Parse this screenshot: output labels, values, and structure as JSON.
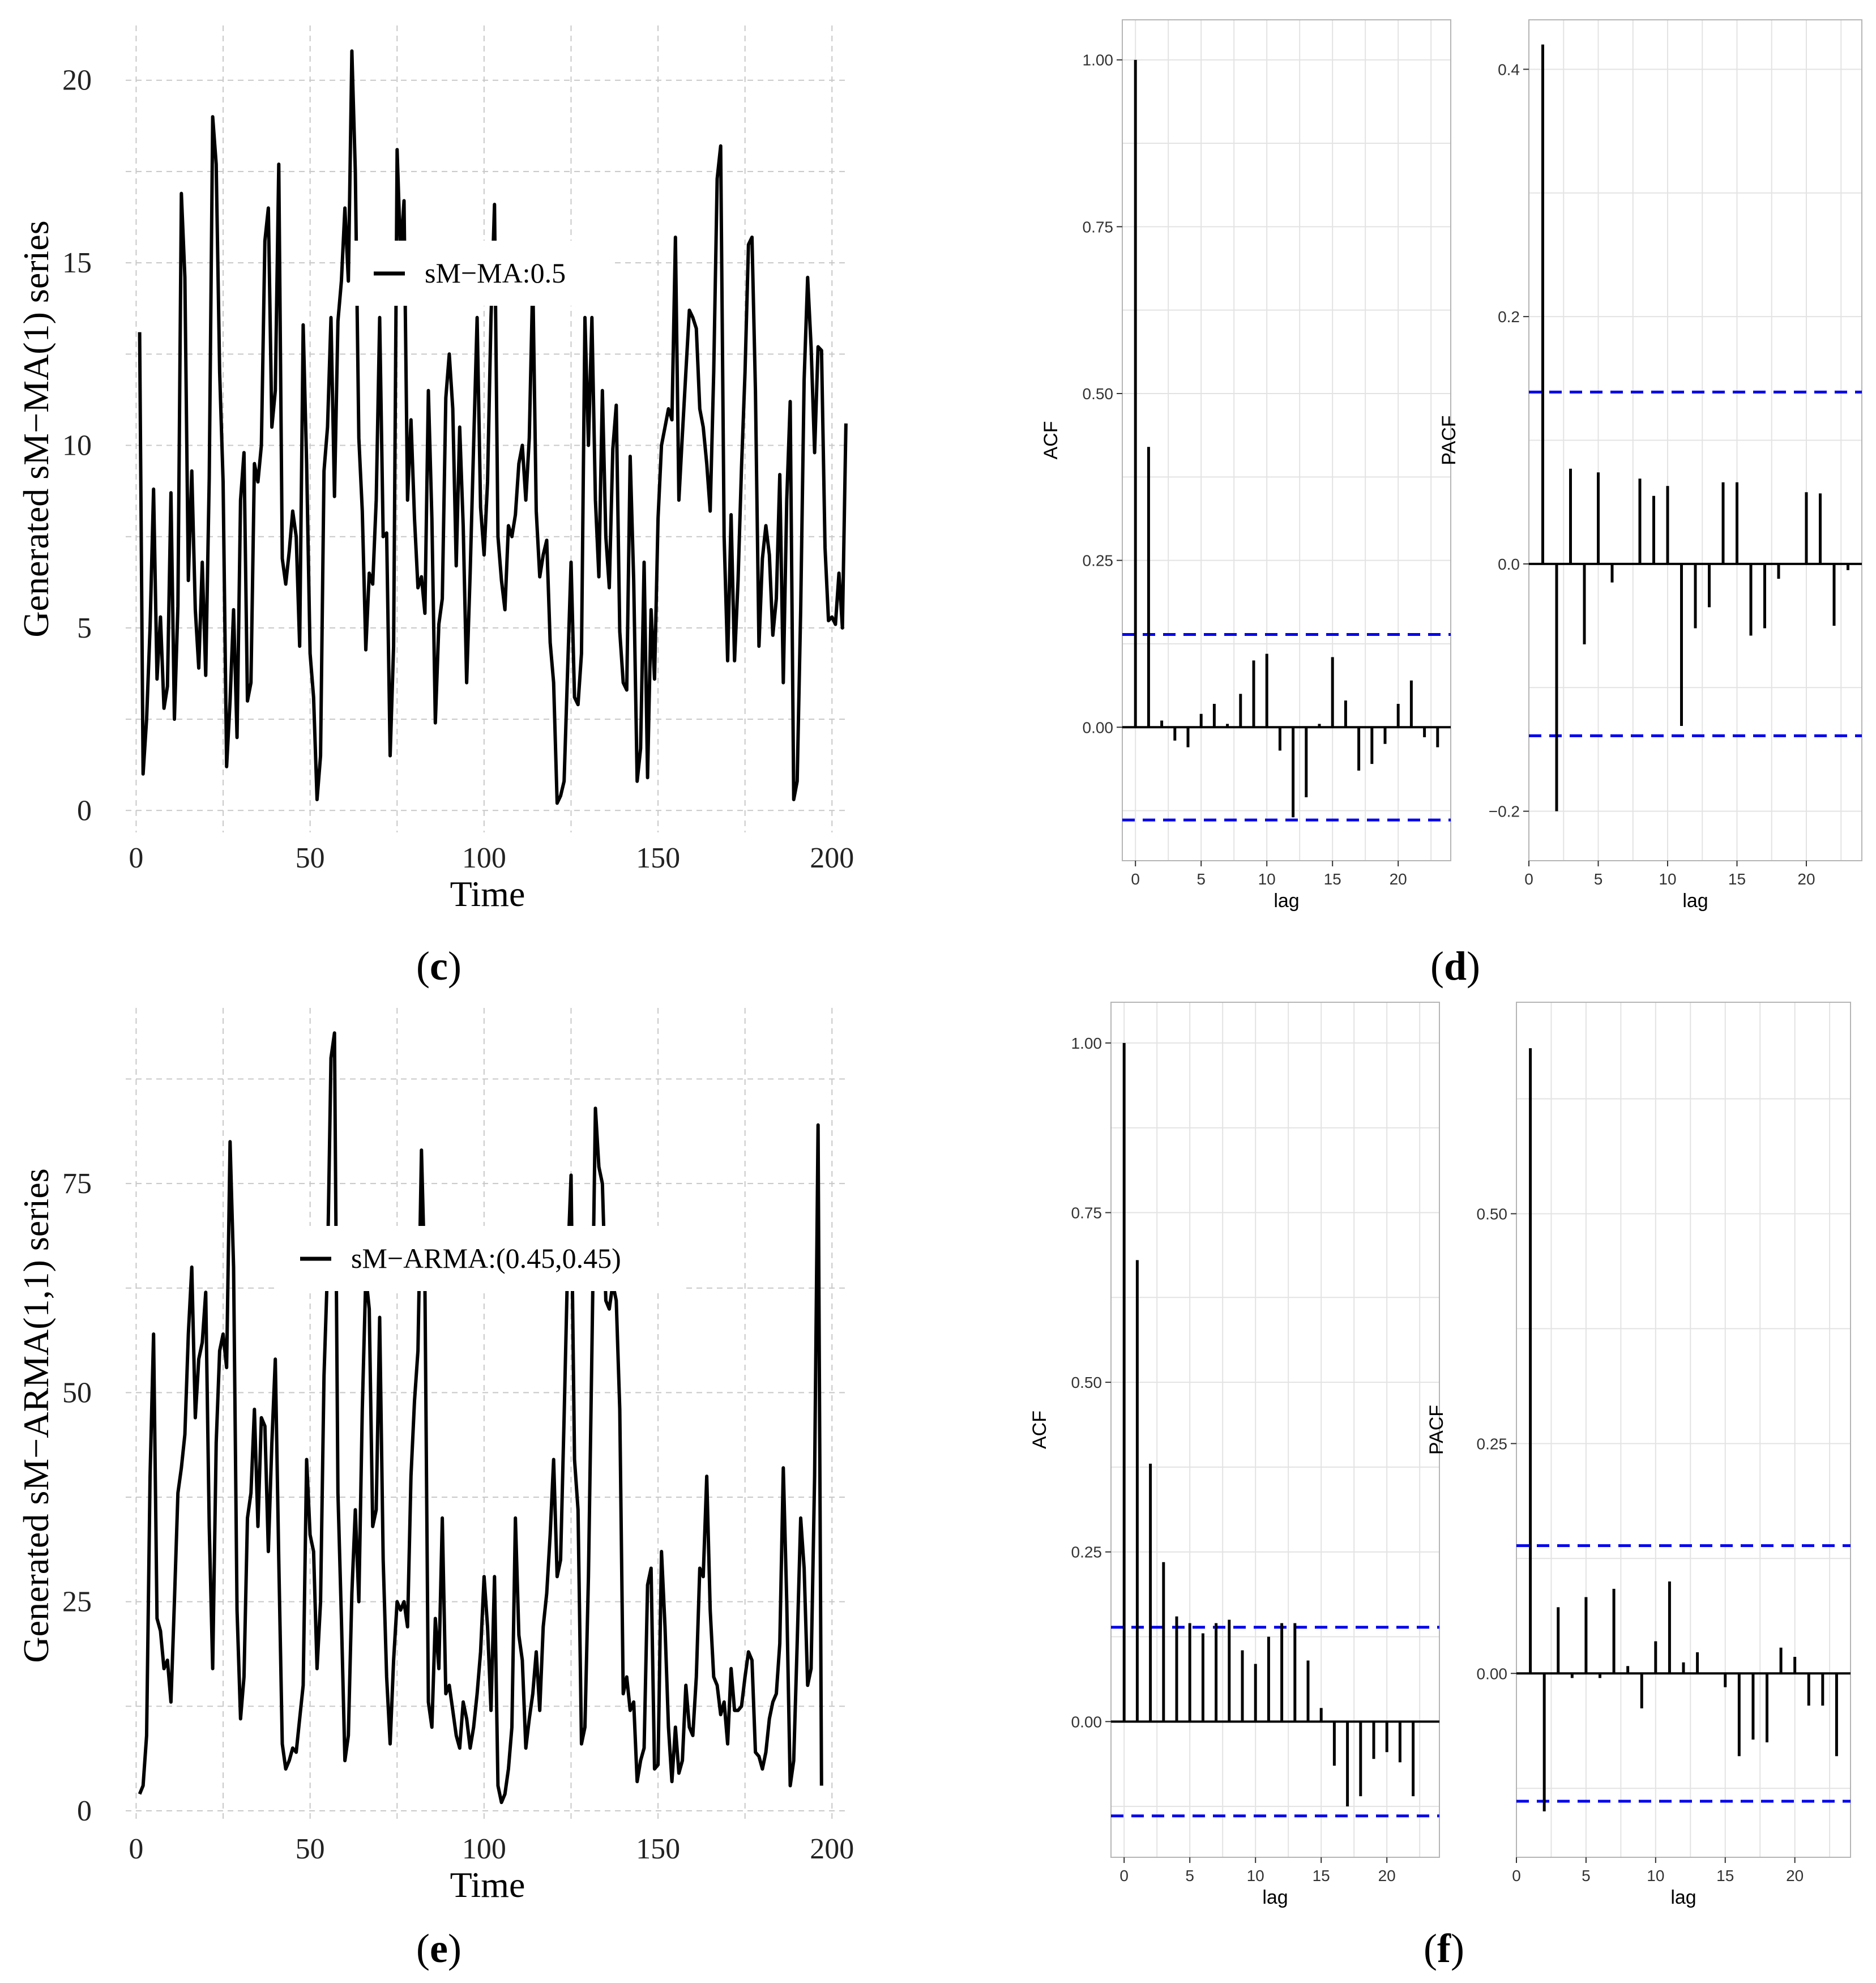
{
  "chart_data": [
    {
      "id": "c",
      "type": "line",
      "panel_label": "c",
      "xlabel": "Time",
      "ylabel": "Generated sM−MA(1) series",
      "xlim": [
        -3,
        205
      ],
      "ylim": [
        -0.6,
        21.5
      ],
      "xticks": [
        0,
        50,
        100,
        150,
        200
      ],
      "yticks": [
        0,
        5,
        10,
        15,
        20
      ],
      "legend": "sM−MA:0.5",
      "series": [
        {
          "name": "sM−MA:0.5",
          "x_start": 1,
          "values": [
            13.1,
            1.0,
            2.5,
            5.0,
            8.8,
            3.6,
            5.3,
            2.8,
            3.4,
            8.7,
            2.5,
            5.6,
            16.9,
            14.6,
            6.3,
            9.3,
            5.5,
            3.9,
            6.8,
            3.7,
            9.1,
            19.0,
            17.7,
            12.0,
            9.0,
            1.2,
            3.0,
            5.5,
            2.0,
            8.5,
            9.8,
            3.0,
            3.5,
            9.5,
            9.0,
            10.0,
            15.6,
            16.5,
            10.5,
            11.5,
            17.7,
            6.9,
            6.2,
            7.1,
            8.2,
            7.5,
            4.5,
            13.3,
            9.5,
            4.3,
            3.1,
            0.3,
            1.5,
            9.3,
            10.5,
            13.5,
            8.6,
            13.4,
            14.5,
            16.5,
            14.5,
            20.8,
            17.5,
            10.2,
            8.2,
            4.4,
            6.5,
            6.2,
            8.5,
            13.5,
            7.5,
            7.6,
            1.5,
            4.5,
            18.1,
            15.2,
            16.7,
            8.5,
            10.7,
            8.0,
            6.1,
            6.4,
            5.4,
            11.5,
            8.0,
            2.4,
            5.1,
            5.8,
            11.3,
            12.5,
            11.0,
            6.7,
            10.5,
            7.8,
            3.5,
            6.5,
            10.0,
            13.5,
            8.3,
            7.0,
            9.0,
            13.5,
            16.6,
            7.5,
            6.3,
            5.5,
            7.8,
            7.5,
            8.1,
            9.5,
            10.0,
            8.5,
            10.2,
            14.6,
            8.2,
            6.4,
            7.0,
            7.4,
            4.6,
            3.5,
            0.2,
            0.4,
            0.8,
            3.8,
            6.8,
            3.1,
            2.9,
            4.3,
            13.5,
            10.0,
            13.5,
            8.5,
            6.4,
            11.5,
            7.5,
            6.1,
            9.9,
            11.1,
            4.9,
            3.5,
            3.3,
            9.7,
            6.3,
            0.8,
            1.7,
            6.8,
            0.9,
            5.5,
            3.6,
            8.0,
            10.0,
            10.5,
            11.0,
            10.7,
            15.7,
            8.5,
            10.3,
            12.0,
            13.7,
            13.5,
            13.2,
            11.0,
            10.5,
            9.5,
            8.2,
            12.0,
            17.3,
            18.2,
            7.5,
            4.1,
            8.1,
            4.1,
            6.3,
            9.4,
            12.0,
            15.5,
            15.7,
            11.5,
            4.5,
            6.9,
            7.8,
            7.0,
            4.8,
            5.8,
            9.2,
            3.5,
            8.5,
            11.2,
            0.3,
            0.8,
            5.5,
            11.8,
            14.6,
            12.7,
            9.8,
            12.7,
            12.6,
            7.2,
            5.2,
            5.3,
            5.1,
            6.5,
            5.0,
            10.6
          ]
        }
      ]
    },
    {
      "id": "d_acf",
      "type": "bar",
      "panel_label": "d",
      "xlabel": "lag",
      "ylabel": "ACF",
      "xlim": [
        -1,
        24
      ],
      "ylim": [
        -0.2,
        1.06
      ],
      "xticks": [
        0,
        5,
        10,
        15,
        20
      ],
      "yticks": [
        0.0,
        0.25,
        0.5,
        0.75,
        1.0
      ],
      "ytick_labels": [
        "0.00",
        "0.25",
        "0.50",
        "0.75",
        "1.00"
      ],
      "confidence_band": 0.139,
      "lags": [
        0,
        1,
        2,
        3,
        4,
        5,
        6,
        7,
        8,
        9,
        10,
        11,
        12,
        13,
        14,
        15,
        16,
        17,
        18,
        19,
        20,
        21,
        22,
        23
      ],
      "values": [
        1.0,
        0.42,
        0.01,
        -0.02,
        -0.03,
        0.02,
        0.035,
        0.005,
        0.05,
        0.1,
        0.11,
        -0.035,
        -0.135,
        -0.105,
        0.005,
        0.105,
        0.04,
        -0.065,
        -0.055,
        -0.025,
        0.035,
        0.07,
        -0.015,
        -0.03
      ]
    },
    {
      "id": "d_pacf",
      "type": "bar",
      "panel_label": "",
      "xlabel": "lag",
      "ylabel": "PACF",
      "xlim": [
        0,
        24
      ],
      "ylim": [
        -0.24,
        0.44
      ],
      "xticks": [
        0,
        5,
        10,
        15,
        20
      ],
      "yticks": [
        -0.2,
        0.0,
        0.2,
        0.4
      ],
      "ytick_labels": [
        "−0.2",
        "0.0",
        "0.2",
        "0.4"
      ],
      "confidence_band": 0.139,
      "lags": [
        1,
        2,
        3,
        4,
        5,
        6,
        7,
        8,
        9,
        10,
        11,
        12,
        13,
        14,
        15,
        16,
        17,
        18,
        19,
        20,
        21,
        22,
        23
      ],
      "values": [
        0.42,
        -0.2,
        0.077,
        -0.065,
        0.074,
        -0.015,
        0.0,
        0.069,
        0.055,
        0.063,
        -0.131,
        -0.052,
        -0.035,
        0.066,
        0.066,
        -0.058,
        -0.052,
        -0.012,
        0.0,
        0.058,
        0.057,
        -0.05,
        -0.005
      ]
    },
    {
      "id": "e",
      "type": "line",
      "panel_label": "e",
      "xlabel": "Time",
      "ylabel": "Generated sM−ARMA(1,1) series",
      "xlim": [
        -3,
        205
      ],
      "ylim": [
        -1.5,
        96
      ],
      "xticks": [
        0,
        50,
        100,
        150,
        200
      ],
      "yticks": [
        0,
        25,
        50,
        75
      ],
      "legend": "sM−ARMA:(0.45,0.45)",
      "series": [
        {
          "name": "sM−ARMA:(0.45,0.45)",
          "x_start": 1,
          "values": [
            2.0,
            3.0,
            9.0,
            40.0,
            57.0,
            23.0,
            21.5,
            17.0,
            18.0,
            13.0,
            25.0,
            38.0,
            41.0,
            45.0,
            57.0,
            65.0,
            47.0,
            54.0,
            56.0,
            62.0,
            34.0,
            17.0,
            44.0,
            55.0,
            57.0,
            53.0,
            80.0,
            65.0,
            24.0,
            11.0,
            16.0,
            35.0,
            38.0,
            48.0,
            34.0,
            47.0,
            46.0,
            31.0,
            44.0,
            54.0,
            30.0,
            8.0,
            5.0,
            6.0,
            7.5,
            7.0,
            11.0,
            15.0,
            42.0,
            33.0,
            31.0,
            17.0,
            25.0,
            52.0,
            65.0,
            90.0,
            93.0,
            38.0,
            23.0,
            6.0,
            9.0,
            26.0,
            36.0,
            25.0,
            48.0,
            64.0,
            60.0,
            34.0,
            36.0,
            59.0,
            30.0,
            16.0,
            8.0,
            18.0,
            25.0,
            24.0,
            25.0,
            22.0,
            40.0,
            49.0,
            55.0,
            79.0,
            63.0,
            13.0,
            10.0,
            23.0,
            17.0,
            35.0,
            14.0,
            15.0,
            12.0,
            9.0,
            7.5,
            13.0,
            11.0,
            7.5,
            10.0,
            14.0,
            19.0,
            28.0,
            22.0,
            12.0,
            28.0,
            3.0,
            1.0,
            2.0,
            5.0,
            10.0,
            35.0,
            21.0,
            18.0,
            7.5,
            11.0,
            14.0,
            19.0,
            12.0,
            22.0,
            26.0,
            33.0,
            42.0,
            28.0,
            30.0,
            47.0,
            65.0,
            76.0,
            42.0,
            36.0,
            8.0,
            10.0,
            28.0,
            55.0,
            84.0,
            77.0,
            75.0,
            61.0,
            60.0,
            63.0,
            61.0,
            48.0,
            14.0,
            16.0,
            12.0,
            13.0,
            3.5,
            6.0,
            7.5,
            27.0,
            29.0,
            5.0,
            5.5,
            31.0,
            22.0,
            10.0,
            3.5,
            10.0,
            4.5,
            6.0,
            15.0,
            10.0,
            9.0,
            16.0,
            29.0,
            28.0,
            40.0,
            24.0,
            16.0,
            15.0,
            11.5,
            13.0,
            8.0,
            17.0,
            12.0,
            12.0,
            12.5,
            16.0,
            19.0,
            18.0,
            7.0,
            6.5,
            5.0,
            7.0,
            11.0,
            13.0,
            14.0,
            20.0,
            41.0,
            25.0,
            3.0,
            6.0,
            20.0,
            35.0,
            29.0,
            15.0,
            17.0,
            40.0,
            82.0,
            3.0
          ]
        }
      ]
    },
    {
      "id": "f_acf",
      "type": "bar",
      "panel_label": "f",
      "xlabel": "lag",
      "ylabel": "ACF",
      "xlim": [
        -1,
        24
      ],
      "ylim": [
        -0.2,
        1.06
      ],
      "xticks": [
        0,
        5,
        10,
        15,
        20
      ],
      "yticks": [
        0.0,
        0.25,
        0.5,
        0.75,
        1.0
      ],
      "ytick_labels": [
        "0.00",
        "0.25",
        "0.50",
        "0.75",
        "1.00"
      ],
      "confidence_band": 0.139,
      "lags": [
        0,
        1,
        2,
        3,
        4,
        5,
        6,
        7,
        8,
        9,
        10,
        11,
        12,
        13,
        14,
        15,
        16,
        17,
        18,
        19,
        20,
        21,
        22,
        23
      ],
      "values": [
        1.0,
        0.68,
        0.38,
        0.235,
        0.155,
        0.145,
        0.13,
        0.145,
        0.15,
        0.105,
        0.085,
        0.125,
        0.145,
        0.145,
        0.09,
        0.02,
        -0.065,
        -0.125,
        -0.11,
        -0.055,
        -0.045,
        -0.06,
        -0.11,
        0.0
      ]
    },
    {
      "id": "f_pacf",
      "type": "bar",
      "panel_label": "",
      "xlabel": "lag",
      "ylabel": "PACF",
      "xlim": [
        0,
        24
      ],
      "ylim": [
        -0.2,
        0.73
      ],
      "xticks": [
        0,
        5,
        10,
        15,
        20
      ],
      "yticks": [
        0.0,
        0.25,
        0.5
      ],
      "ytick_labels": [
        "0.00",
        "0.25",
        "0.50"
      ],
      "confidence_band": 0.139,
      "lags": [
        1,
        2,
        3,
        4,
        5,
        6,
        7,
        8,
        9,
        10,
        11,
        12,
        13,
        14,
        15,
        16,
        17,
        18,
        19,
        20,
        21,
        22,
        23
      ],
      "values": [
        0.68,
        -0.15,
        0.072,
        -0.005,
        0.083,
        -0.005,
        0.092,
        0.008,
        -0.038,
        0.035,
        0.1,
        0.012,
        0.023,
        -0.001,
        -0.015,
        -0.09,
        -0.072,
        -0.075,
        0.028,
        0.018,
        -0.035,
        -0.035,
        -0.09
      ]
    }
  ]
}
